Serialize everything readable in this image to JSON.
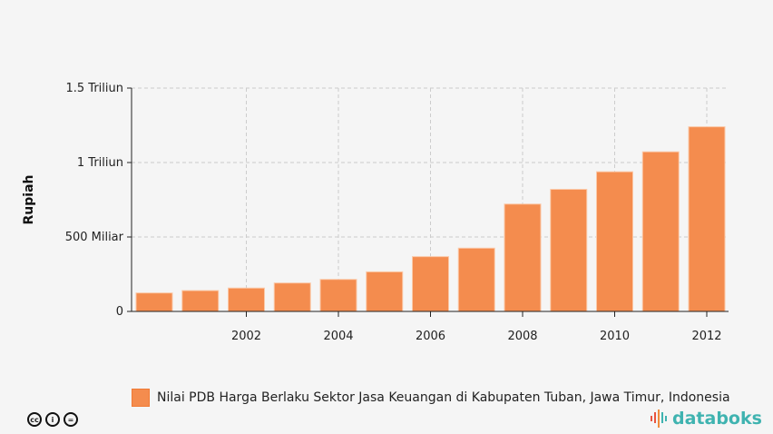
{
  "chart_data": {
    "type": "bar",
    "title": "",
    "xlabel": "",
    "ylabel": "Rupiah",
    "categories": [
      2000,
      2001,
      2002,
      2003,
      2004,
      2005,
      2006,
      2007,
      2008,
      2009,
      2010,
      2011,
      2012
    ],
    "series": [
      {
        "name": "Nilai PDB Harga Berlaku Sektor Jasa Keuangan di Kabupaten Tuban, Jawa Timur, Indonesia",
        "unit": "Triliun Rupiah",
        "values": [
          0.124,
          0.14,
          0.157,
          0.191,
          0.215,
          0.266,
          0.368,
          0.425,
          0.721,
          0.82,
          0.938,
          1.072,
          1.24
        ]
      }
    ],
    "ylim": [
      0,
      1.5
    ],
    "yticks": [
      {
        "value": 0,
        "label": "0"
      },
      {
        "value": 0.5,
        "label": "500 Miliar"
      },
      {
        "value": 1,
        "label": "1 Triliun"
      },
      {
        "value": 1.5,
        "label": "1.5 Triliun"
      }
    ],
    "xticks": [
      "2002",
      "2004",
      "2006",
      "2008",
      "2010",
      "2012"
    ],
    "grid": true,
    "legend_placement": "bottom",
    "colors": {
      "bar": "#f48c4e",
      "bar_edge": "#fbc9a8",
      "grid": "#cccccc"
    }
  },
  "footer": {
    "license_icons": [
      "cc-icon",
      "by-icon",
      "nd-icon"
    ],
    "license_glyphs": [
      "cc",
      "i",
      "="
    ],
    "brand": "databoks"
  }
}
